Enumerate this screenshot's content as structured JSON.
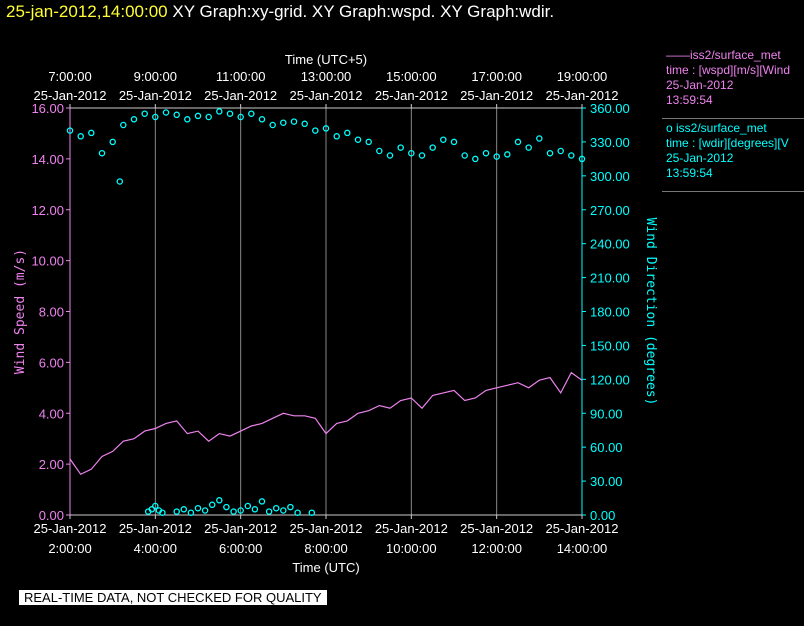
{
  "header": {
    "timestamp": "25-jan-2012,14:00:00",
    "graphs": "XY Graph:xy-grid.  XY Graph:wspd.  XY Graph:wdir."
  },
  "legend": [
    {
      "line1": "——iss2/surface_met",
      "line2": "time : [wspd][m/s][Wind",
      "line3": "25-Jan-2012",
      "line4": "13:59:54",
      "color": "#ee82ee"
    },
    {
      "line1": "o  iss2/surface_met",
      "line2": "time : [wdir][degrees][V",
      "line3": "25-Jan-2012",
      "line4": "13:59:54",
      "color": "#00ffff"
    }
  ],
  "footer": "REAL-TIME DATA, NOT CHECKED FOR QUALITY",
  "chart_data": {
    "type": "line",
    "top_axis_title": "Time (UTC+5)",
    "bottom_axis_title": "Time (UTC)",
    "ylabel_left": "Wind  Speed  (m/s)",
    "ylabel_right": "Wind  Direction  (degrees)",
    "top_ticks": [
      {
        "x": "02:00",
        "date": "25-Jan-2012",
        "time": "7:00:00"
      },
      {
        "x": "04:00",
        "date": "25-Jan-2012",
        "time": "9:00:00"
      },
      {
        "x": "06:00",
        "date": "25-Jan-2012",
        "time": "11:00:00"
      },
      {
        "x": "08:00",
        "date": "25-Jan-2012",
        "time": "13:00:00"
      },
      {
        "x": "10:00",
        "date": "25-Jan-2012",
        "time": "15:00:00"
      },
      {
        "x": "12:00",
        "date": "25-Jan-2012",
        "time": "17:00:00"
      },
      {
        "x": "14:00",
        "date": "25-Jan-2012",
        "time": "19:00:00"
      }
    ],
    "bottom_ticks": [
      {
        "x": "02:00",
        "date": "25-Jan-2012",
        "time": "2:00:00"
      },
      {
        "x": "04:00",
        "date": "25-Jan-2012",
        "time": "4:00:00"
      },
      {
        "x": "06:00",
        "date": "25-Jan-2012",
        "time": "6:00:00"
      },
      {
        "x": "08:00",
        "date": "25-Jan-2012",
        "time": "8:00:00"
      },
      {
        "x": "10:00",
        "date": "25-Jan-2012",
        "time": "10:00:00"
      },
      {
        "x": "12:00",
        "date": "25-Jan-2012",
        "time": "12:00:00"
      },
      {
        "x": "14:00",
        "date": "25-Jan-2012",
        "time": "14:00:00"
      }
    ],
    "xlim": [
      "02:00",
      "14:00"
    ],
    "ylim_left": [
      0,
      16
    ],
    "ylim_right": [
      0,
      360
    ],
    "left_ticks": [
      "0.00",
      "2.00",
      "4.00",
      "6.00",
      "8.00",
      "10.00",
      "12.00",
      "14.00",
      "16.00"
    ],
    "right_ticks": [
      "0.00",
      "30.00",
      "60.00",
      "90.00",
      "120.00",
      "150.00",
      "180.00",
      "210.00",
      "240.00",
      "270.00",
      "300.00",
      "330.00",
      "360.00"
    ],
    "grid": "vertical",
    "colors": {
      "wspd": "#ee82ee",
      "wdir": "#00ffff",
      "axis": "#cccccc"
    },
    "series": [
      {
        "name": "iss2/surface_met wspd",
        "axis": "left",
        "style": "line",
        "x": [
          "02:00",
          "02:15",
          "02:30",
          "02:45",
          "03:00",
          "03:15",
          "03:30",
          "03:45",
          "04:00",
          "04:15",
          "04:30",
          "04:45",
          "05:00",
          "05:15",
          "05:30",
          "05:45",
          "06:00",
          "06:15",
          "06:30",
          "06:45",
          "07:00",
          "07:15",
          "07:30",
          "07:45",
          "08:00",
          "08:15",
          "08:30",
          "08:45",
          "09:00",
          "09:15",
          "09:30",
          "09:45",
          "10:00",
          "10:15",
          "10:30",
          "10:45",
          "11:00",
          "11:15",
          "11:30",
          "11:45",
          "12:00",
          "12:15",
          "12:30",
          "12:45",
          "13:00",
          "13:15",
          "13:30",
          "13:45",
          "14:00"
        ],
        "y": [
          2.2,
          1.6,
          1.8,
          2.3,
          2.5,
          2.9,
          3.0,
          3.3,
          3.4,
          3.6,
          3.7,
          3.2,
          3.3,
          2.9,
          3.2,
          3.1,
          3.3,
          3.5,
          3.6,
          3.8,
          4.0,
          3.9,
          3.9,
          3.8,
          3.2,
          3.6,
          3.7,
          4.0,
          4.1,
          4.3,
          4.2,
          4.5,
          4.6,
          4.2,
          4.7,
          4.8,
          4.9,
          4.5,
          4.6,
          4.9,
          5.0,
          5.1,
          5.2,
          5.0,
          5.3,
          5.4,
          4.8,
          5.6,
          5.3
        ]
      },
      {
        "name": "iss2/surface_met wdir",
        "axis": "right",
        "style": "scatter",
        "x": [
          "02:00",
          "02:15",
          "02:30",
          "02:45",
          "03:00",
          "03:10",
          "03:15",
          "03:30",
          "03:45",
          "04:00",
          "04:15",
          "04:30",
          "04:45",
          "05:00",
          "05:15",
          "05:30",
          "05:45",
          "06:00",
          "06:15",
          "06:30",
          "06:45",
          "07:00",
          "07:15",
          "07:30",
          "07:45",
          "08:00",
          "08:15",
          "08:30",
          "08:45",
          "09:00",
          "09:15",
          "09:30",
          "09:45",
          "10:00",
          "10:15",
          "10:30",
          "10:45",
          "11:00",
          "11:15",
          "11:30",
          "11:45",
          "12:00",
          "12:15",
          "12:30",
          "12:45",
          "13:00",
          "13:15",
          "13:30",
          "13:45",
          "14:00"
        ],
        "y": [
          340,
          335,
          338,
          320,
          330,
          295,
          345,
          350,
          355,
          352,
          356,
          354,
          350,
          353,
          352,
          357,
          355,
          352,
          355,
          350,
          345,
          347,
          348,
          346,
          340,
          342,
          335,
          338,
          332,
          330,
          322,
          318,
          325,
          320,
          318,
          325,
          332,
          330,
          318,
          315,
          320,
          317,
          319,
          330,
          325,
          333,
          320,
          322,
          318,
          315
        ]
      },
      {
        "name": "iss2/surface_met wdir low",
        "axis": "right",
        "style": "scatter",
        "x": [
          "03:50",
          "03:55",
          "04:00",
          "04:05",
          "04:10",
          "04:30",
          "04:40",
          "04:50",
          "05:00",
          "05:10",
          "05:20",
          "05:30",
          "05:40",
          "05:50",
          "06:00",
          "06:10",
          "06:20",
          "06:30",
          "06:40",
          "06:50",
          "07:00",
          "07:10",
          "07:20",
          "07:40"
        ],
        "y": [
          3,
          5,
          8,
          4,
          2,
          3,
          5,
          2,
          6,
          4,
          9,
          13,
          7,
          3,
          4,
          8,
          5,
          12,
          3,
          6,
          4,
          7,
          2,
          2
        ]
      }
    ]
  }
}
